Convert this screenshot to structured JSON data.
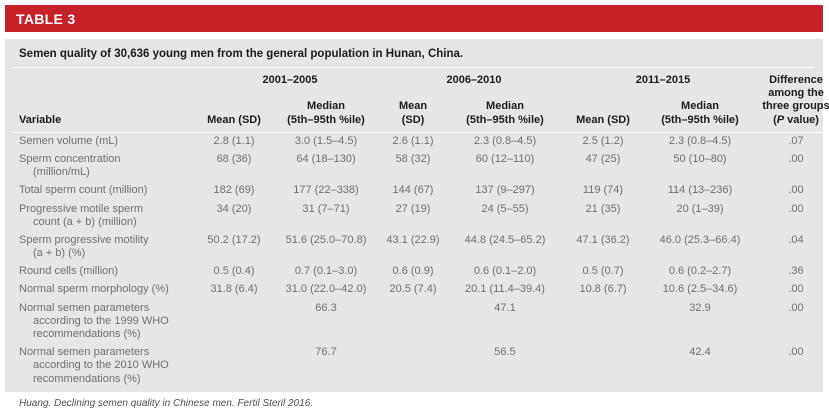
{
  "header": {
    "table_label": "TABLE 3"
  },
  "title": "Semen quality of 30,636 young men from the general population in Hunan, China.",
  "footnote": "Huang. Declining semen quality in Chinese men. Fertil Steril 2016.",
  "colors": {
    "accent_red": "#C62129",
    "panel_gray": "#E6E6E7",
    "header_text": "#1C1C1C",
    "data_text": "#6E7072"
  },
  "table": {
    "variable_header": "Variable",
    "groups": [
      {
        "label": "2001–2005",
        "mean_lines": [
          "Mean (SD)"
        ],
        "median_lines": [
          "Median",
          "(5th–95th %ile)"
        ]
      },
      {
        "label": "2006–2010",
        "mean_lines": [
          "Mean",
          "(SD)"
        ],
        "median_lines": [
          "Median",
          "(5th–95th %ile)"
        ]
      },
      {
        "label": "2011–2015",
        "mean_lines": [
          "Mean (SD)"
        ],
        "median_lines": [
          "Median",
          "(5th–95th %ile)"
        ]
      }
    ],
    "p_header_lines": [
      "Difference",
      "among the",
      "three groups"
    ],
    "p_paren_pre": "(",
    "p_italic": "P",
    "p_paren_post": " value)",
    "rows": [
      {
        "label_lines": [
          "Semen volume (mL)"
        ],
        "values": [
          "2.8 (1.1)",
          "3.0 (1.5–4.5)",
          "2.6 (1.1)",
          "2.3 (0.8–4.5)",
          "2.5 (1.2)",
          "2.3 (0.8–4.5)",
          ".07"
        ]
      },
      {
        "label_lines": [
          "Sperm concentration",
          "(million/mL)"
        ],
        "values": [
          "68 (36)",
          "64 (18–130)",
          "58 (32)",
          "60 (12–110)",
          "47 (25)",
          "50 (10–80)",
          ".00"
        ]
      },
      {
        "label_lines": [
          "Total sperm count (million)"
        ],
        "values": [
          "182 (69)",
          "177 (22–338)",
          "144 (67)",
          "137 (9–297)",
          "119 (74)",
          "114 (13–236)",
          ".00"
        ]
      },
      {
        "label_lines": [
          "Progressive motile sperm",
          "count (a + b) (million)"
        ],
        "values": [
          "34 (20)",
          "31 (7–71)",
          "27 (19)",
          "24 (5–55)",
          "21 (35)",
          "20 (1–39)",
          ".00"
        ]
      },
      {
        "label_lines": [
          "Sperm progressive motility",
          "(a + b) (%)"
        ],
        "values": [
          "50.2 (17.2)",
          "51.6 (25.0–70.8)",
          "43.1 (22.9)",
          "44.8 (24.5–65.2)",
          "47.1 (36.2)",
          "46.0 (25.3–66.4)",
          ".04"
        ]
      },
      {
        "label_lines": [
          "Round cells (million)"
        ],
        "values": [
          "0.5 (0.4)",
          "0.7 (0.1–3.0)",
          "0.6 (0.9)",
          "0.6 (0.1–2.0)",
          "0.5 (0.7)",
          "0.6 (0.2–2.7)",
          ".36"
        ]
      },
      {
        "label_lines": [
          "Normal sperm morphology (%)"
        ],
        "values": [
          "31.8 (6.4)",
          "31.0 (22.0–42.0)",
          "20.5 (7.4)",
          "20.1 (11.4–39.4)",
          "10.8 (6.7)",
          "10.6 (2.5–34.6)",
          ".00"
        ]
      },
      {
        "label_lines": [
          "Normal semen parameters",
          "according to the 1999 WHO",
          "recommendations (%)"
        ],
        "values": [
          "",
          "66.3",
          "",
          "47.1",
          "",
          "32.9",
          ".00"
        ]
      },
      {
        "label_lines": [
          "Normal semen parameters",
          "according to the 2010 WHO",
          "recommendations (%)"
        ],
        "values": [
          "",
          "76.7",
          "",
          "56.5",
          "",
          "42.4",
          ".00"
        ]
      }
    ]
  }
}
